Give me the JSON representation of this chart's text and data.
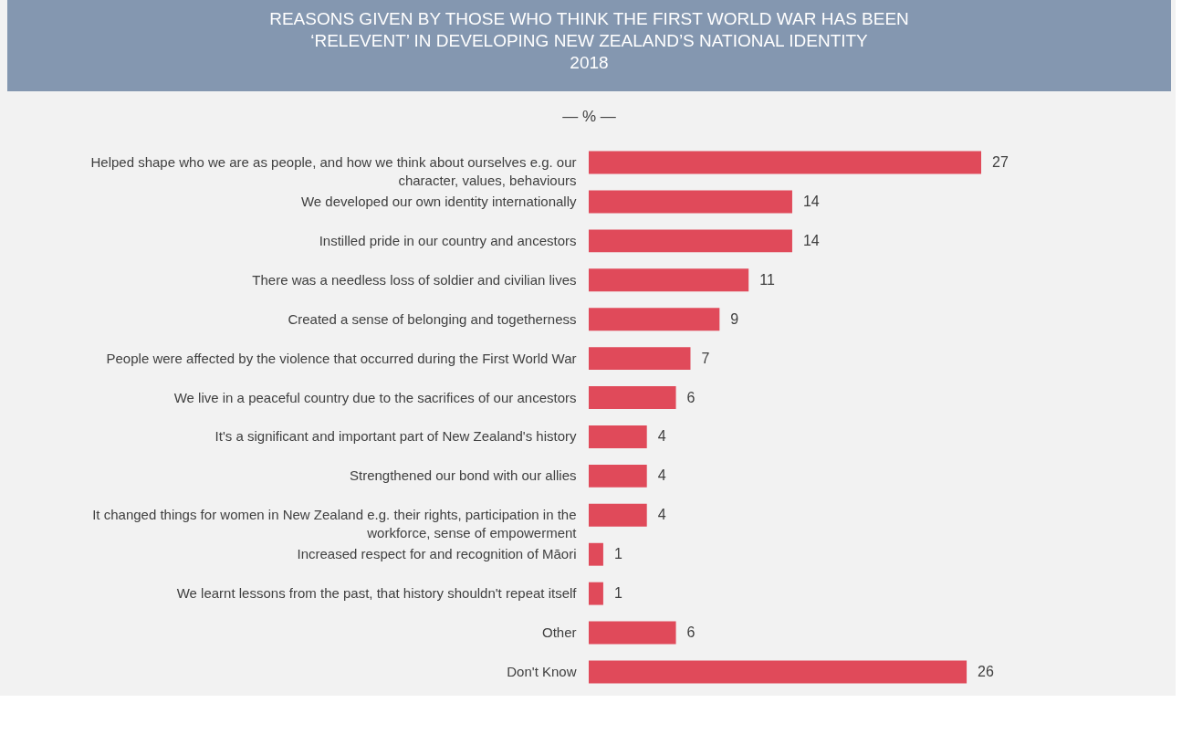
{
  "chart_data": {
    "type": "bar",
    "orientation": "horizontal",
    "title": "REASONS GIVEN BY THOSE WHO THINK THE FIRST WORLD WAR HAS BEEN ‘RELEVENT’ IN DEVELOPING NEW ZEALAND’S NATIONAL IDENTITY",
    "subtitle": "2018",
    "annotations": [
      "— % —"
    ],
    "categories": [
      "Helped shape who we are as people, and how we think about ourselves e.g. our character, values, behaviours",
      "We developed our own identity internationally",
      "Instilled pride in our country and ancestors",
      "There was a needless loss of soldier and civilian lives",
      "Created a sense of belonging and togetherness",
      "People were affected by the violence that occurred during the First World War",
      "We live in a peaceful country due to the sacrifices of our ancestors",
      "It's a significant and important part of New Zealand's history",
      "Strengthened our bond with our allies",
      "It changed things for women in New Zealand e.g. their rights, participation in the workforce, sense of empowerment",
      "Increased respect for and recognition of Māori",
      "We learnt lessons  from the past, that history shouldn't repeat itself",
      "Other",
      "Don't Know"
    ],
    "values": [
      27,
      14,
      14,
      11,
      9,
      7,
      6,
      4,
      4,
      4,
      1,
      1,
      6,
      26
    ],
    "color": "#e04a5a",
    "data_labels": true,
    "grid": false
  }
}
